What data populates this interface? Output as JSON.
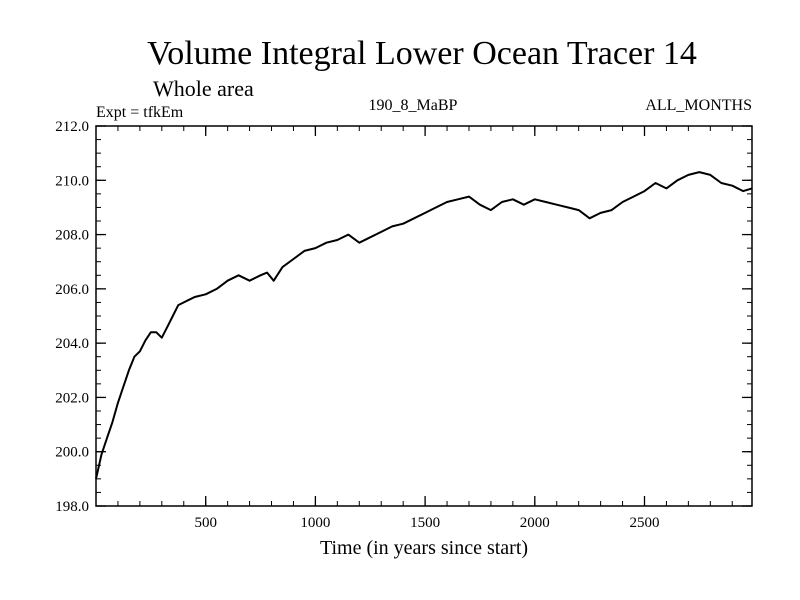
{
  "chart_data": {
    "type": "line",
    "title": "Volume Integral Lower Ocean Tracer 14",
    "subtitle": "Whole area",
    "annotations": {
      "experiment": "Expt = tfkEm",
      "period": "190_8_MaBP",
      "months": "ALL_MONTHS"
    },
    "xlabel": "Time (in years since start)",
    "ylabel": "",
    "xlim": [
      0,
      2990
    ],
    "ylim": [
      198.0,
      212.0
    ],
    "xticks": [
      500,
      1000,
      1500,
      2000,
      2500
    ],
    "xtick_labels": [
      "500",
      "1000",
      "1500",
      "2000",
      "2500"
    ],
    "yticks": [
      198.0,
      200.0,
      202.0,
      204.0,
      206.0,
      208.0,
      210.0,
      212.0
    ],
    "ytick_labels": [
      "198.0",
      "200.0",
      "202.0",
      "204.0",
      "206.0",
      "208.0",
      "210.0",
      "212.0"
    ],
    "grid": false,
    "series": [
      {
        "color": "#000000",
        "x": [
          0,
          25,
          50,
          75,
          100,
          125,
          150,
          175,
          200,
          225,
          250,
          275,
          300,
          325,
          350,
          375,
          400,
          425,
          450,
          500,
          550,
          600,
          650,
          700,
          750,
          780,
          810,
          850,
          900,
          950,
          1000,
          1050,
          1100,
          1150,
          1200,
          1250,
          1300,
          1350,
          1400,
          1450,
          1500,
          1550,
          1600,
          1650,
          1700,
          1750,
          1800,
          1850,
          1900,
          1950,
          2000,
          2050,
          2100,
          2150,
          2200,
          2250,
          2300,
          2350,
          2400,
          2450,
          2500,
          2550,
          2600,
          2650,
          2700,
          2750,
          2800,
          2850,
          2900,
          2950,
          2990
        ],
        "y": [
          199.0,
          199.9,
          200.5,
          201.1,
          201.8,
          202.4,
          203.0,
          203.5,
          203.7,
          204.1,
          204.4,
          204.4,
          204.2,
          204.6,
          205.0,
          205.4,
          205.5,
          205.6,
          205.7,
          205.8,
          206.0,
          206.3,
          206.5,
          206.3,
          206.5,
          206.6,
          206.3,
          206.8,
          207.1,
          207.4,
          207.5,
          207.7,
          207.8,
          208.0,
          207.7,
          207.9,
          208.1,
          208.3,
          208.4,
          208.6,
          208.8,
          209.0,
          209.2,
          209.3,
          209.4,
          209.1,
          208.9,
          209.2,
          209.3,
          209.1,
          209.3,
          209.2,
          209.1,
          209.0,
          208.9,
          208.6,
          208.8,
          208.9,
          209.2,
          209.4,
          209.6,
          209.9,
          209.7,
          210.0,
          210.2,
          210.3,
          210.2,
          209.9,
          209.8,
          209.6,
          209.7
        ]
      }
    ]
  }
}
